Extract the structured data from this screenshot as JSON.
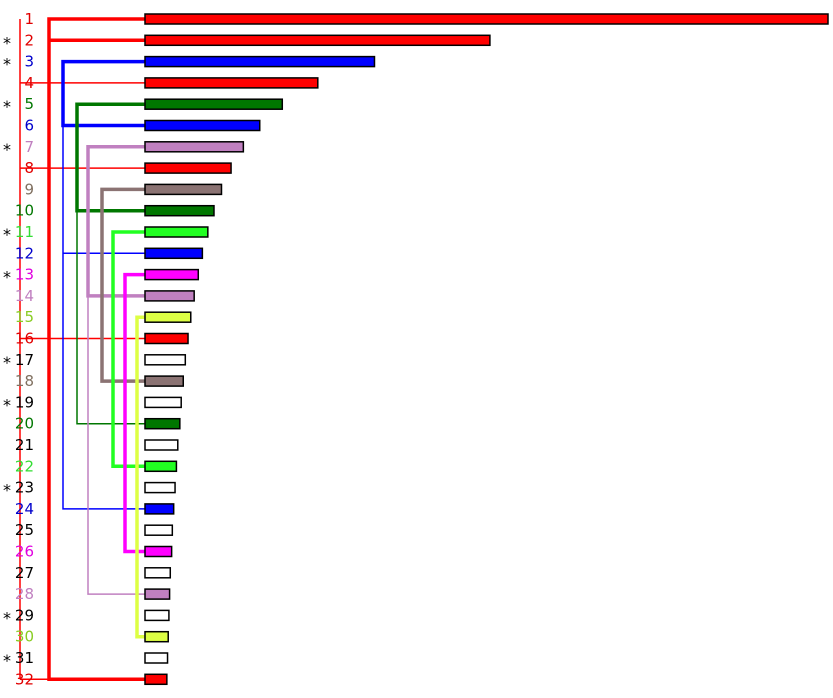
{
  "colors": {
    "red": "#ff0000",
    "blue": "#0000ff",
    "green": "#007700",
    "purple": "#c080c0",
    "brown": "#8b7373",
    "lime": "#22ff22",
    "magenta": "#ff00ff",
    "yellow": "#ddff44",
    "white": "#ffffff"
  },
  "label_colors": {
    "red": "#e00000",
    "blue": "#0000cc",
    "green": "#007700",
    "purple": "#c080c0",
    "brown": "#807060",
    "lime": "#33dd33",
    "magenta": "#e000e0",
    "yellow": "#88cc22",
    "white": "#000000"
  },
  "star_symbol": "*",
  "chart_data": {
    "type": "bar",
    "orientation": "horizontal",
    "axis": "none",
    "categories": [
      "1",
      "2",
      "3",
      "4",
      "5",
      "6",
      "7",
      "8",
      "9",
      "10",
      "11",
      "12",
      "13",
      "14",
      "15",
      "16",
      "17",
      "18",
      "19",
      "20",
      "21",
      "22",
      "23",
      "24",
      "25",
      "26",
      "27",
      "28",
      "29",
      "30",
      "31",
      "32"
    ],
    "values": [
      100,
      50.5,
      33.6,
      25.3,
      20.1,
      16.8,
      14.4,
      12.6,
      11.2,
      10.1,
      9.2,
      8.4,
      7.8,
      7.2,
      6.7,
      6.3,
      5.9,
      5.6,
      5.3,
      5.1,
      4.8,
      4.6,
      4.4,
      4.2,
      4.0,
      3.9,
      3.7,
      3.6,
      3.5,
      3.4,
      3.3,
      3.2
    ],
    "bar_colors": [
      "red",
      "red",
      "blue",
      "red",
      "green",
      "blue",
      "purple",
      "red",
      "brown",
      "green",
      "lime",
      "blue",
      "magenta",
      "purple",
      "yellow",
      "red",
      "white",
      "brown",
      "white",
      "green",
      "white",
      "lime",
      "white",
      "blue",
      "white",
      "magenta",
      "white",
      "purple",
      "white",
      "yellow",
      "white",
      "red"
    ],
    "starred": [
      "2",
      "3",
      "5",
      "7",
      "11",
      "13",
      "17",
      "19",
      "23",
      "29",
      "31"
    ],
    "links": [
      {
        "from": "1",
        "to": "32",
        "color": "red",
        "heavy": true
      },
      {
        "from": "2",
        "to": "2",
        "color": "red",
        "heavy": true
      },
      {
        "from": "4",
        "to": "4",
        "color": "red",
        "heavy": false
      },
      {
        "from": "8",
        "to": "8",
        "color": "red",
        "heavy": false
      },
      {
        "from": "16",
        "to": "16",
        "color": "red",
        "heavy": false
      },
      {
        "from": "3",
        "to": "6",
        "color": "blue",
        "heavy": true
      },
      {
        "from": "3",
        "to": "24",
        "color": "blue",
        "heavy": false
      },
      {
        "from": "12",
        "to": "12",
        "color": "blue",
        "heavy": false
      },
      {
        "from": "5",
        "to": "10",
        "color": "green",
        "heavy": true
      },
      {
        "from": "5",
        "to": "20",
        "color": "green",
        "heavy": false
      },
      {
        "from": "7",
        "to": "14",
        "color": "purple",
        "heavy": true
      },
      {
        "from": "7",
        "to": "28",
        "color": "purple",
        "heavy": false
      },
      {
        "from": "9",
        "to": "18",
        "color": "brown",
        "heavy": true
      },
      {
        "from": "11",
        "to": "22",
        "color": "lime",
        "heavy": true
      },
      {
        "from": "13",
        "to": "26",
        "color": "magenta",
        "heavy": true
      },
      {
        "from": "15",
        "to": "30",
        "color": "yellow",
        "heavy": true
      }
    ]
  }
}
